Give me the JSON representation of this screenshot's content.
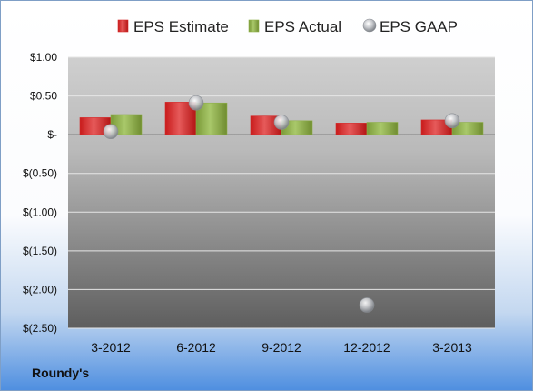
{
  "company": "Roundy's",
  "colors": {
    "estimate": "#d42a2a",
    "actual": "#8fb04a",
    "gaap": "#b5b8bd"
  },
  "chart_data": {
    "type": "bar",
    "categories": [
      "3-2012",
      "6-2012",
      "9-2012",
      "12-2012",
      "3-2013"
    ],
    "series": [
      {
        "name": "EPS Estimate",
        "kind": "bar",
        "values": [
          0.22,
          0.42,
          0.24,
          0.15,
          0.19
        ]
      },
      {
        "name": "EPS Actual",
        "kind": "bar",
        "values": [
          0.26,
          0.41,
          0.18,
          0.16,
          0.16
        ]
      },
      {
        "name": "EPS GAAP",
        "kind": "marker",
        "values": [
          0.04,
          0.41,
          0.16,
          -2.2,
          0.18
        ]
      }
    ],
    "ylim": [
      -2.5,
      1.0
    ],
    "yticks": [
      1.0,
      0.5,
      0.0,
      -0.5,
      -1.0,
      -1.5,
      -2.0,
      -2.5
    ],
    "ytick_labels": [
      "$1.00",
      "$0.50",
      "$-",
      "$(0.50)",
      "$(1.00)",
      "$(1.50)",
      "$(2.00)",
      "$(2.50)"
    ],
    "grid": true,
    "legend": "top"
  }
}
